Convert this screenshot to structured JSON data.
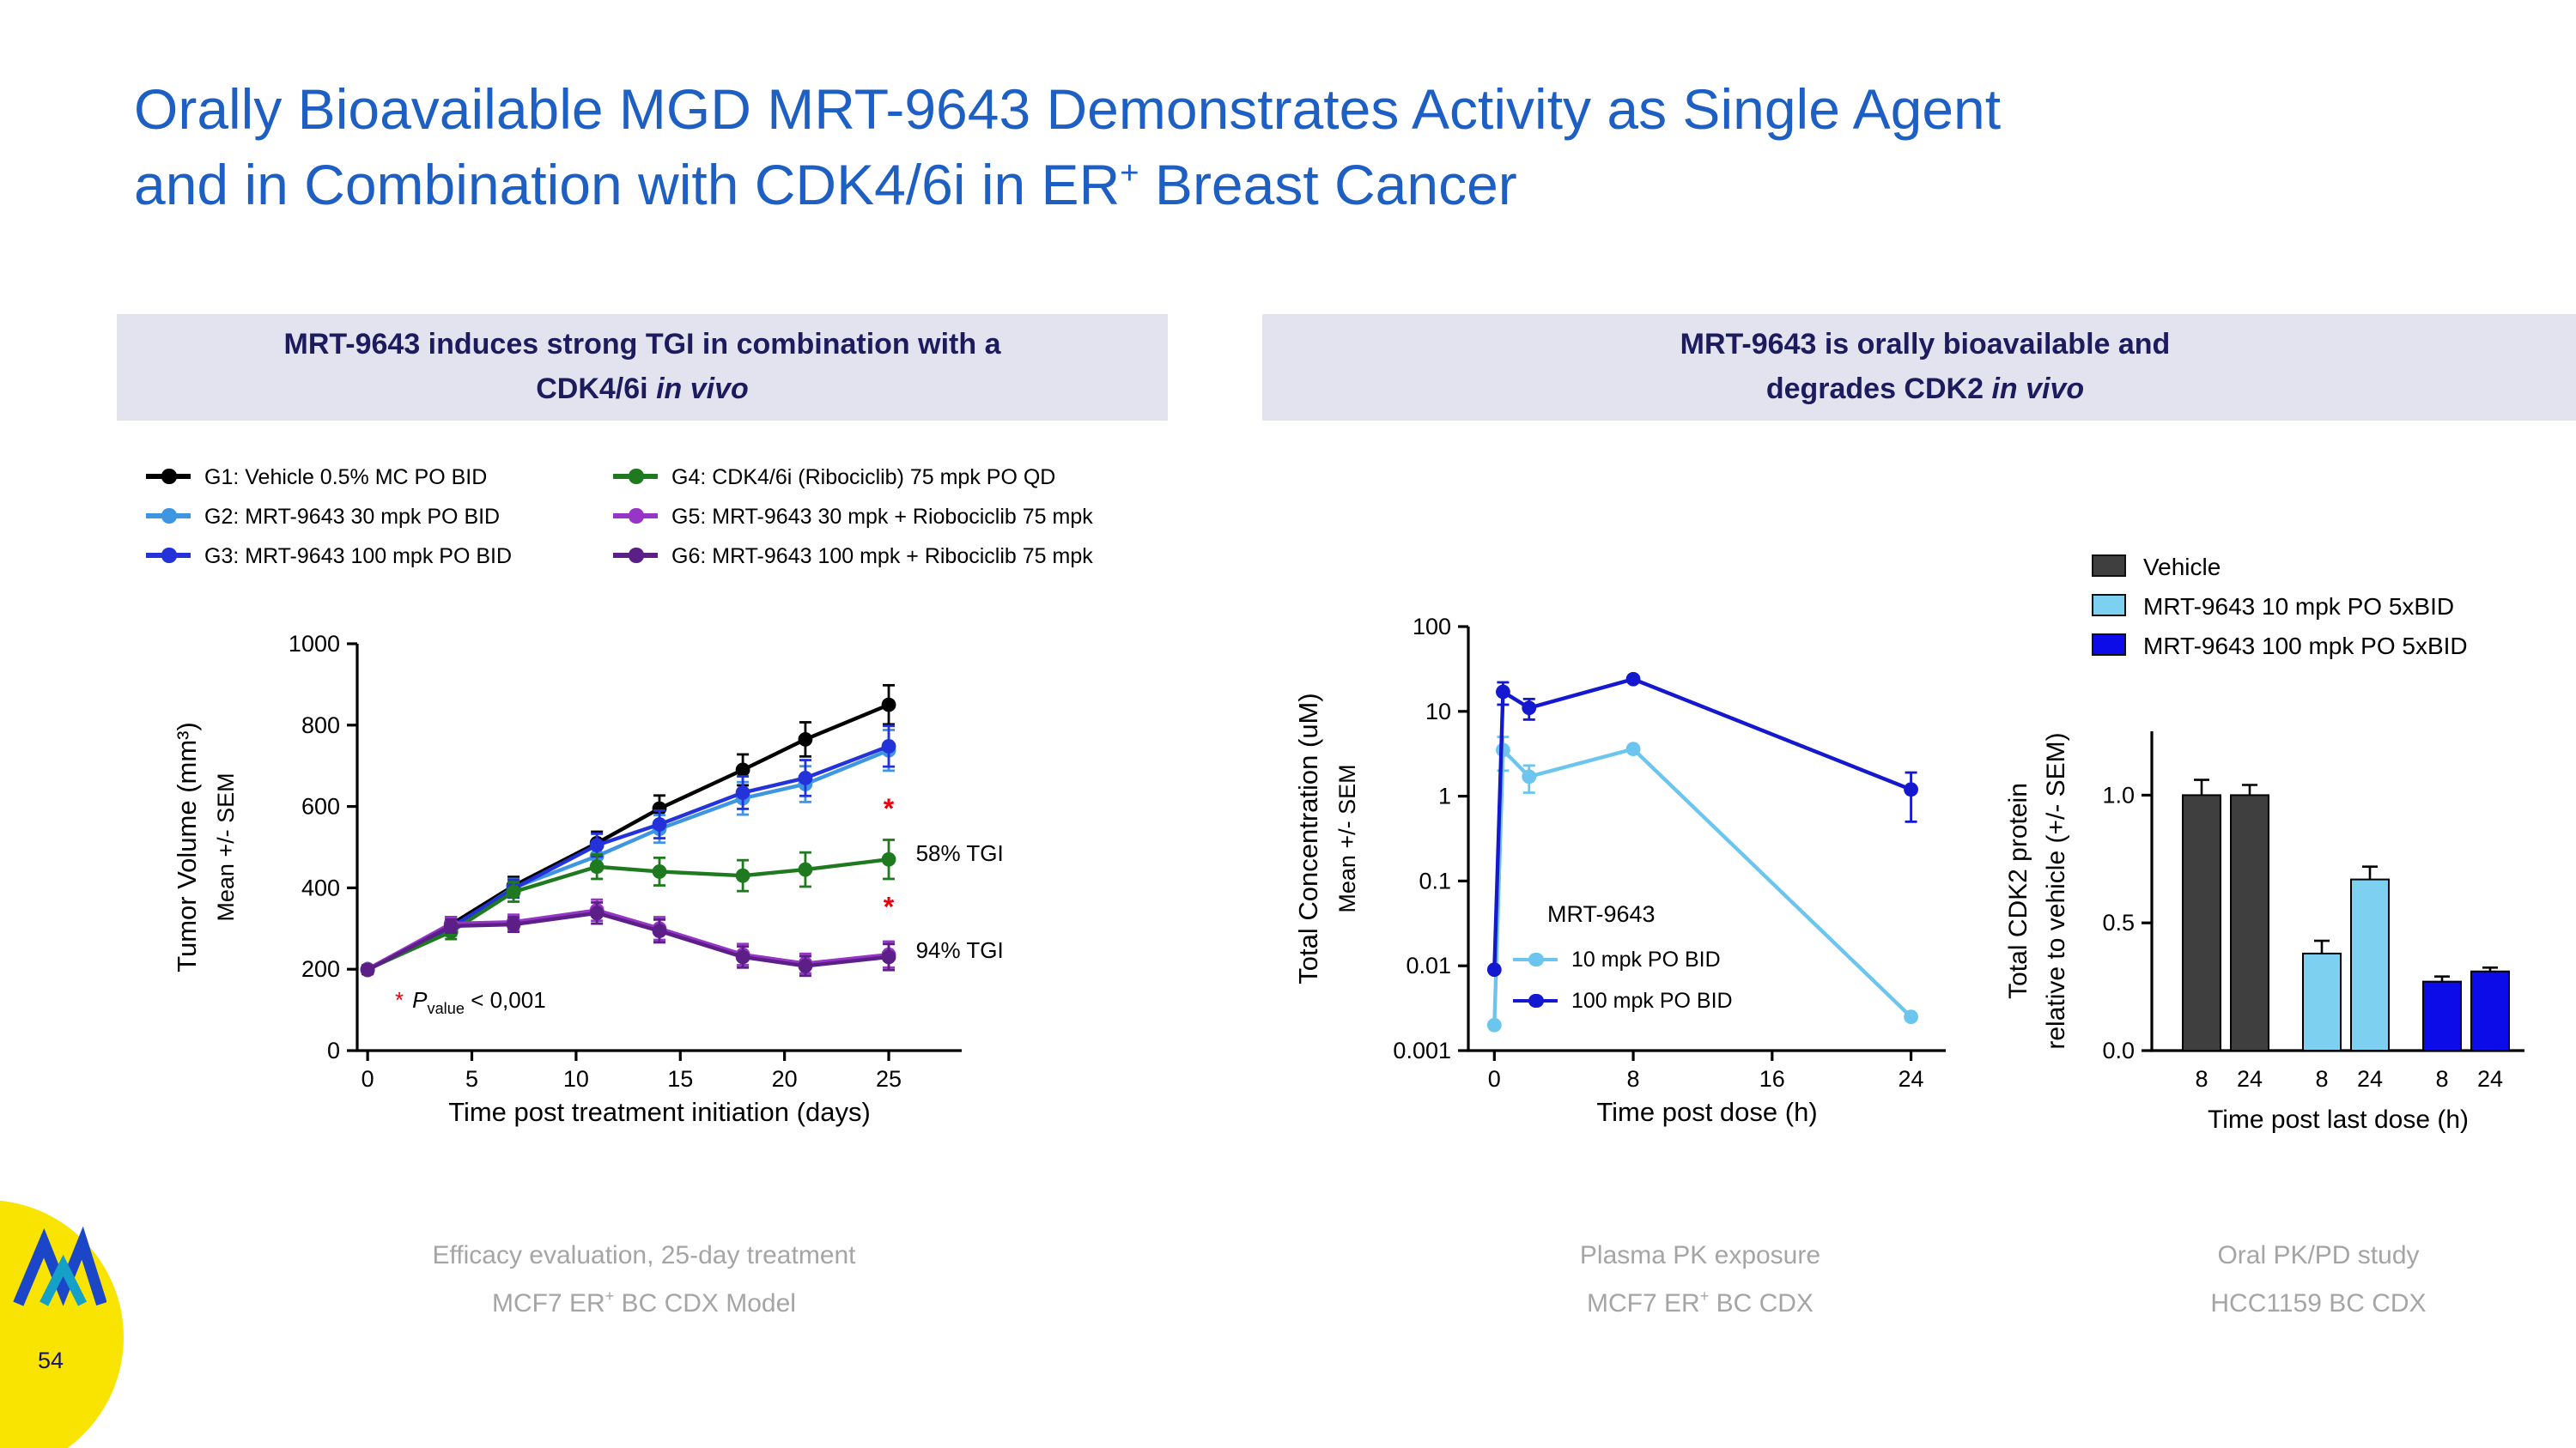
{
  "slide": {
    "title_line1": "Orally Bioavailable MGD MRT-9643 Demonstrates Activity as Single Agent",
    "title_line2_pre": "and in Combination with CDK4/6i in ER",
    "title_line2_sup": "+",
    "title_line2_post": " Breast Cancer",
    "page_number": "54"
  },
  "panels": {
    "left": {
      "line1": "MRT-9643 induces strong TGI in combination with a",
      "line2_pre": "CDK4/6i ",
      "line2_italic": "in vivo"
    },
    "right": {
      "line1": "MRT-9643 is orally bioavailable and",
      "line2_pre": "degrades CDK2 ",
      "line2_italic": "in vivo"
    }
  },
  "pvalue_note": {
    "star": "*",
    "p": "P",
    "sub": "value",
    "rest": " < 0,001"
  },
  "captions": [
    {
      "line1": "Efficacy evaluation, 25-day treatment",
      "line2_pre": "MCF7 ER",
      "line2_sup": "+",
      "line2_post": " BC CDX Model"
    },
    {
      "line1": "Plasma PK exposure",
      "line2_pre": "MCF7 ER",
      "line2_sup": "+",
      "line2_post": " BC CDX"
    },
    {
      "line1": "Oral PK/PD study",
      "line2_pre": "HCC1159 BC CDX",
      "line2_sup": "",
      "line2_post": ""
    }
  ],
  "colors": {
    "title_blue": "#1D5FC2",
    "header_bg": "#E3E3EF",
    "header_text": "#1B1B5E",
    "annotation_red": "#E8000B",
    "logo_yellow": "#F8E400"
  },
  "chart_data": [
    {
      "type": "line",
      "title": "Tumor growth inhibition",
      "xlabel": "Time post treatment initiation (days)",
      "ylabel_line1": "Tumor Volume (mm³)",
      "ylabel_line2": "Mean +/- SEM",
      "xlim": [
        -0.5,
        28.5
      ],
      "ylim": [
        0,
        1000
      ],
      "xticks": [
        0,
        5,
        10,
        15,
        20,
        25
      ],
      "yticks": [
        0,
        200,
        400,
        600,
        800,
        1000
      ],
      "x": [
        0,
        4,
        7,
        11,
        14,
        18,
        21,
        25
      ],
      "series": [
        {
          "name": "G1: Vehicle 0.5% MC PO BID",
          "color": "#000000",
          "values": [
            200,
            310,
            405,
            510,
            595,
            690,
            765,
            850
          ],
          "err": [
            10,
            18,
            22,
            28,
            32,
            38,
            42,
            48
          ]
        },
        {
          "name": "G2: MRT-9643 30 mpk PO BID",
          "color": "#3E96E2",
          "values": [
            200,
            300,
            400,
            478,
            545,
            620,
            655,
            738
          ],
          "err": [
            10,
            18,
            22,
            28,
            34,
            40,
            44,
            50
          ]
        },
        {
          "name": "G3: MRT-9643 100 mpk PO BID",
          "color": "#2433D9",
          "values": [
            200,
            303,
            398,
            505,
            556,
            634,
            670,
            748
          ],
          "err": [
            10,
            18,
            22,
            28,
            34,
            40,
            44,
            50
          ]
        },
        {
          "name": "G4: CDK4/6i (Ribociclib) 75 mpk PO QD",
          "color": "#1F7A1F",
          "values": [
            200,
            292,
            390,
            452,
            440,
            430,
            445,
            470
          ],
          "err": [
            10,
            18,
            24,
            30,
            34,
            38,
            42,
            48
          ]
        },
        {
          "name": "G5: MRT-9643 30 mpk + Riobociclib 75 mpk",
          "color": "#9635C8",
          "values": [
            200,
            312,
            316,
            345,
            300,
            236,
            214,
            236
          ],
          "err": [
            10,
            16,
            18,
            26,
            28,
            26,
            24,
            32
          ]
        },
        {
          "name": "G6: MRT-9643 100 mpk + Ribociclib 75 mpk",
          "color": "#5B1F87",
          "values": [
            198,
            306,
            310,
            338,
            294,
            230,
            208,
            230
          ],
          "err": [
            10,
            16,
            18,
            26,
            28,
            26,
            24,
            32
          ]
        }
      ],
      "annotations": [
        {
          "text": "*",
          "color": "#E8000B",
          "x": 25,
          "y": 572,
          "size": 16,
          "bold": true,
          "anchor": "middle"
        },
        {
          "text": "58% TGI",
          "color": "#000000",
          "x": 26.3,
          "y": 466,
          "size": 13,
          "anchor": "start"
        },
        {
          "text": "*",
          "color": "#E8000B",
          "x": 25,
          "y": 330,
          "size": 16,
          "bold": true,
          "anchor": "middle"
        },
        {
          "text": "94% TGI",
          "color": "#000000",
          "x": 26.3,
          "y": 228,
          "size": 13,
          "anchor": "start"
        }
      ],
      "footnote": "* Pvalue < 0,001"
    },
    {
      "type": "line",
      "title": "Plasma PK exposure",
      "yscale": "log",
      "xlabel": "Time post dose (h)",
      "ylabel_line1": "Total Concentration (uM)",
      "ylabel_line2": "Mean +/- SEM",
      "xlim": [
        -1.5,
        26
      ],
      "ylim": [
        0.001,
        100
      ],
      "xticks": [
        0,
        8,
        16,
        24
      ],
      "yticks": [
        0.001,
        0.01,
        0.1,
        1,
        10,
        100
      ],
      "legend_title": "MRT-9643",
      "series": [
        {
          "name": "10 mpk PO BID",
          "color": "#6CC5EE",
          "x": [
            0,
            0.5,
            2,
            8,
            24
          ],
          "values": [
            0.002,
            3.5,
            1.7,
            3.6,
            0.0025
          ],
          "err": [
            0,
            1.5,
            0.6,
            0,
            0
          ]
        },
        {
          "name": "100 mpk PO BID",
          "color": "#1418CE",
          "x": [
            0,
            0.5,
            2,
            8,
            24
          ],
          "values": [
            0.009,
            17,
            11,
            24,
            1.2
          ],
          "err": [
            0,
            5,
            3,
            0,
            0.7
          ]
        }
      ]
    },
    {
      "type": "bar",
      "title": "CDK2 degradation",
      "xlabel": "Time post last dose (h)",
      "ylabel_line1": "Total CDK2 protein",
      "ylabel_line2": "relative to vehicle (+/- SEM)",
      "ylim": [
        0,
        1.25
      ],
      "yticks": [
        0,
        0.5,
        1.0
      ],
      "groups": [
        {
          "series": "Vehicle",
          "color": "#3F3F3F",
          "bars": [
            {
              "label": "8",
              "value": 1.0,
              "err": 0.06
            },
            {
              "label": "24",
              "value": 1.0,
              "err": 0.04
            }
          ]
        },
        {
          "series": "MRT-9643 10 mpk PO 5xBID",
          "color": "#7DD0F0",
          "bars": [
            {
              "label": "8",
              "value": 0.38,
              "err": 0.05
            },
            {
              "label": "24",
              "value": 0.67,
              "err": 0.05
            }
          ]
        },
        {
          "series": "MRT-9643 100 mpk PO 5xBID",
          "color": "#0C0CE8",
          "bars": [
            {
              "label": "8",
              "value": 0.27,
              "err": 0.02
            },
            {
              "label": "24",
              "value": 0.31,
              "err": 0.015
            }
          ]
        }
      ],
      "legend": [
        {
          "label": "Vehicle",
          "color": "#3F3F3F"
        },
        {
          "label": "MRT-9643 10 mpk PO 5xBID",
          "color": "#7DD0F0"
        },
        {
          "label": "MRT-9643 100 mpk PO 5xBID",
          "color": "#0C0CE8"
        }
      ]
    }
  ]
}
